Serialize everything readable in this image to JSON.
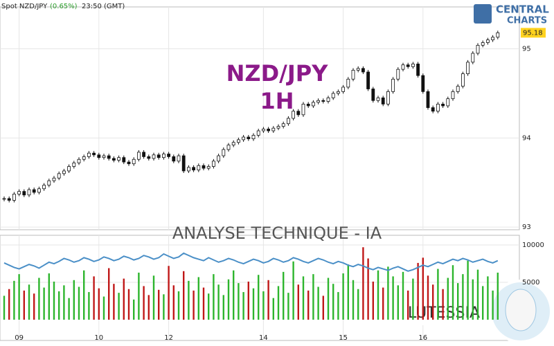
{
  "chart_data": {
    "type": "candlestick",
    "header": {
      "instrument": "Spot NZD/JPY",
      "change": "(0.65%)",
      "time": "23:50 (GMT)"
    },
    "title": "NZD/JPY",
    "subtitle": "1H",
    "watermark": "ANALYSE TECHNIQUE - IA",
    "brand": "LUTESSIA",
    "logo": [
      "CENTRAL",
      "CHARTS"
    ],
    "last_price": 95.18,
    "ylim": [
      92.97,
      95.47
    ],
    "yticks": [
      93,
      94,
      95
    ],
    "xticks": [
      {
        "value": 3,
        "label": "09"
      },
      {
        "value": 19,
        "label": "10"
      },
      {
        "value": 33,
        "label": "12"
      },
      {
        "value": 52,
        "label": "14"
      },
      {
        "value": 68,
        "label": "15"
      },
      {
        "value": 84,
        "label": "16"
      }
    ],
    "close": [
      93.32,
      93.3,
      93.37,
      93.4,
      93.36,
      93.42,
      93.39,
      93.43,
      93.47,
      93.52,
      93.55,
      93.6,
      93.63,
      93.68,
      93.72,
      93.76,
      93.79,
      93.83,
      93.81,
      93.78,
      93.8,
      93.77,
      93.75,
      93.78,
      93.73,
      93.71,
      93.76,
      93.84,
      93.79,
      93.77,
      93.81,
      93.78,
      93.82,
      93.79,
      93.74,
      93.8,
      93.63,
      93.67,
      93.64,
      93.69,
      93.66,
      93.68,
      93.74,
      93.8,
      93.87,
      93.92,
      93.95,
      93.98,
      94.01,
      93.99,
      94.03,
      94.08,
      94.1,
      94.08,
      94.11,
      94.13,
      94.16,
      94.22,
      94.3,
      94.26,
      94.38,
      94.36,
      94.4,
      94.42,
      94.41,
      94.45,
      94.5,
      94.52,
      94.57,
      94.66,
      94.76,
      94.78,
      94.74,
      94.55,
      94.42,
      94.45,
      94.38,
      94.52,
      94.66,
      94.77,
      94.82,
      94.8,
      94.83,
      94.7,
      94.52,
      94.34,
      94.3,
      94.38,
      94.36,
      94.44,
      94.52,
      94.58,
      94.72,
      94.85,
      94.95,
      95.04,
      95.07,
      95.1,
      95.13,
      95.18
    ],
    "volume": {
      "ylim": [
        0,
        11300
      ],
      "yticks": [
        5000,
        10000
      ],
      "colors": {
        "up": "#2db52d",
        "down": "#c01818",
        "line": "#4a8fc7"
      },
      "values": [
        3200,
        4100,
        5200,
        6100,
        3900,
        4700,
        3500,
        5600,
        4300,
        6200,
        5100,
        3800,
        4600,
        2900,
        5300,
        4400,
        6600,
        3700,
        5800,
        4200,
        3100,
        6900,
        4800,
        3600,
        5500,
        4100,
        2700,
        6300,
        4500,
        3300,
        5900,
        4000,
        3400,
        7200,
        4600,
        3800,
        6500,
        5200,
        3900,
        5700,
        4300,
        3500,
        6100,
        4700,
        3300,
        5400,
        6600,
        4900,
        3700,
        5100,
        4200,
        6000,
        3800,
        5300,
        2900,
        4500,
        6400,
        3600,
        7800,
        4700,
        5800,
        3900,
        6100,
        4400,
        3200,
        5600,
        4800,
        3700,
        6200,
        7400,
        5300,
        4100,
        9700,
        8200,
        5100,
        6600,
        4300,
        7100,
        5800,
        4600,
        6400,
        3900,
        5500,
        7600,
        8300,
        5900,
        4700,
        6800,
        4100,
        5600,
        7300,
        4900,
        6100,
        7900,
        5400,
        6700,
        4500,
        5800,
        3900,
        6300
      ],
      "line": [
        7600,
        7300,
        7000,
        6800,
        7100,
        7400,
        7200,
        6900,
        7300,
        7700,
        7500,
        7800,
        8200,
        8000,
        7700,
        7900,
        8300,
        8100,
        7800,
        8000,
        8400,
        8200,
        7900,
        8100,
        8500,
        8300,
        8000,
        8200,
        8600,
        8400,
        8100,
        8300,
        8800,
        8500,
        8200,
        8400,
        8900,
        8600,
        8300,
        8100,
        7900,
        8300,
        8000,
        7700,
        7900,
        8200,
        8000,
        7700,
        7500,
        7800,
        8100,
        7900,
        7600,
        7800,
        8200,
        8000,
        7700,
        7900,
        8300,
        8100,
        7800,
        7600,
        7900,
        8200,
        8000,
        7700,
        7500,
        7800,
        7600,
        7300,
        7100,
        7400,
        7200,
        6900,
        6700,
        7000,
        6800,
        6600,
        6900,
        7100,
        6800,
        6500,
        6700,
        7000,
        7300,
        7100,
        7400,
        7700,
        7500,
        7800,
        8100,
        7900,
        8200,
        8000,
        7700,
        7900,
        8100,
        7800,
        7600,
        7900
      ]
    }
  }
}
